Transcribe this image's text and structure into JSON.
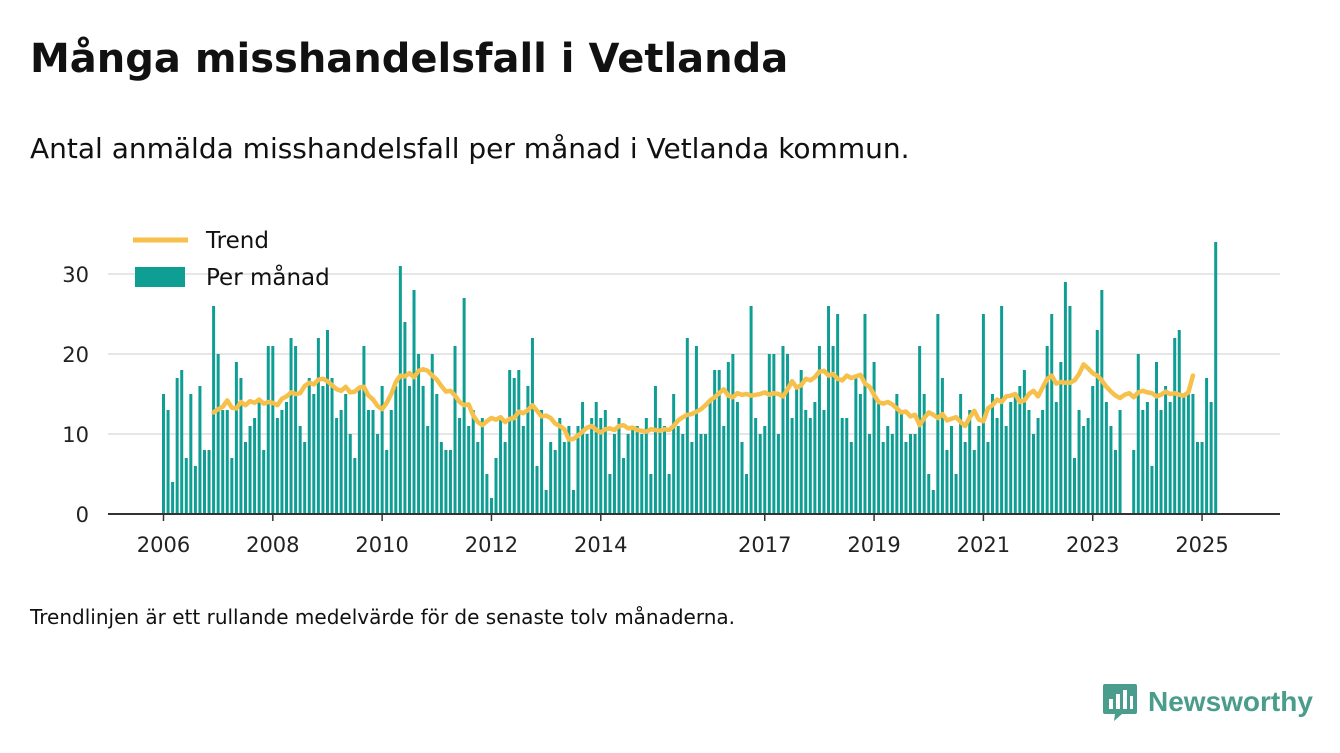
{
  "title": "Många misshandelsfall i Vetlanda",
  "subtitle": "Antal anmälda misshandelsfall per månad i Vetlanda kommun.",
  "footnote": "Trendlinjen är ett rullande medelvärde för de senaste tolv månaderna.",
  "brand": {
    "name": "Newsworthy",
    "icon": "newsworthy-logo-icon"
  },
  "colors": {
    "bars": "#0f9e94",
    "trend": "#f6c04a",
    "grid": "#dddddd",
    "axis": "#333333",
    "brand": "#4a9c8c"
  },
  "legend": {
    "trend_label": "Trend",
    "bars_label": "Per månad"
  },
  "chart_data": {
    "type": "bar",
    "title": "Många misshandelsfall i Vetlanda",
    "start_month": "2006-01",
    "interval": "monthly",
    "ylim": [
      0,
      35
    ],
    "y_ticks": [
      0,
      10,
      20,
      30
    ],
    "x_ticks": [
      "2006",
      "2008",
      "2010",
      "2012",
      "2014",
      "2017",
      "2019",
      "2021",
      "2023",
      "2025"
    ],
    "grid": "horizontal",
    "legend_position": "top-left",
    "series": [
      {
        "name": "Per månad",
        "kind": "bar",
        "values": [
          15,
          13,
          4,
          17,
          18,
          7,
          15,
          6,
          16,
          8,
          8,
          26,
          20,
          13,
          13,
          7,
          19,
          17,
          9,
          11,
          12,
          14,
          8,
          21,
          21,
          12,
          13,
          14,
          22,
          21,
          11,
          9,
          17,
          15,
          22,
          16,
          23,
          17,
          12,
          13,
          15,
          10,
          7,
          16,
          21,
          13,
          13,
          10,
          16,
          8,
          13,
          16,
          31,
          24,
          16,
          28,
          20,
          16,
          11,
          20,
          15,
          9,
          8,
          8,
          21,
          12,
          27,
          11,
          13,
          9,
          12,
          5,
          2,
          7,
          12,
          9,
          18,
          17,
          18,
          11,
          16,
          22,
          6,
          13,
          3,
          9,
          8,
          12,
          9,
          11,
          3,
          11,
          14,
          10,
          12,
          14,
          12,
          13,
          5,
          10,
          12,
          7,
          10,
          11,
          11,
          10,
          12,
          5,
          16,
          12,
          11,
          5,
          15,
          11,
          10,
          22,
          9,
          21,
          10,
          10,
          14,
          18,
          18,
          11,
          19,
          20,
          14,
          9,
          5,
          26,
          12,
          10,
          11,
          20,
          20,
          10,
          21,
          20,
          12,
          16,
          18,
          13,
          12,
          14,
          21,
          13,
          26,
          21,
          25,
          12,
          12,
          9,
          17,
          15,
          25,
          10,
          19,
          14,
          9,
          11,
          10,
          15,
          13,
          9,
          10,
          10,
          21,
          15,
          5,
          3,
          25,
          17,
          8,
          11,
          5,
          15,
          9,
          13,
          8,
          11,
          25,
          9,
          15,
          12,
          26,
          11,
          14,
          15,
          16,
          18,
          13,
          10,
          12,
          13,
          21,
          25,
          14,
          19,
          29,
          26,
          7,
          13,
          11,
          12,
          16,
          23,
          28,
          14,
          11,
          8,
          13,
          0,
          0,
          8,
          20,
          13,
          14,
          6,
          19,
          13,
          16,
          14,
          22,
          23,
          15,
          15,
          15,
          9,
          9,
          17,
          14,
          34
        ]
      },
      {
        "name": "Trend",
        "kind": "line",
        "values": [
          null,
          null,
          null,
          null,
          null,
          null,
          null,
          null,
          null,
          null,
          null,
          12.7,
          13.1,
          13.4,
          14.2,
          13.3,
          13.2,
          14.0,
          13.6,
          14.1,
          13.9,
          14.3,
          13.8,
          14.0,
          13.9,
          13.6,
          14.4,
          14.7,
          15.2,
          15.0,
          15.1,
          16.0,
          16.4,
          16.2,
          16.8,
          16.9,
          16.6,
          16.1,
          15.6,
          15.4,
          15.9,
          15.2,
          15.3,
          15.8,
          15.9,
          14.8,
          14.3,
          13.5,
          13.1,
          13.9,
          15.0,
          16.5,
          17.3,
          17.2,
          17.6,
          17.1,
          17.9,
          18.1,
          17.9,
          17.3,
          16.8,
          16.0,
          15.3,
          15.4,
          14.8,
          14.0,
          13.6,
          13.7,
          12.3,
          11.5,
          11.1,
          11.6,
          12.0,
          11.8,
          12.1,
          11.5,
          11.9,
          12.0,
          12.8,
          12.6,
          13.0,
          13.6,
          12.9,
          12.2,
          12.3,
          12.0,
          11.3,
          11.0,
          10.6,
          9.3,
          9.4,
          9.8,
          10.3,
          10.8,
          11.0,
          10.5,
          10.2,
          10.6,
          10.7,
          10.5,
          11.0,
          11.1,
          10.7,
          10.8,
          10.5,
          10.4,
          10.3,
          10.6,
          10.5,
          10.4,
          10.6,
          10.5,
          11.0,
          11.7,
          12.1,
          12.4,
          12.5,
          12.8,
          13.1,
          13.6,
          14.2,
          14.6,
          15.1,
          15.6,
          14.8,
          14.6,
          15.1,
          14.9,
          15.0,
          14.8,
          14.9,
          15.0,
          15.2,
          14.9,
          15.1,
          15.0,
          14.7,
          15.6,
          16.6,
          15.8,
          16.1,
          16.9,
          16.7,
          17.1,
          17.8,
          17.9,
          17.3,
          17.5,
          16.9,
          16.7,
          17.3,
          17.0,
          17.2,
          17.4,
          16.3,
          15.9,
          14.9,
          14.0,
          13.8,
          14.0,
          13.7,
          13.2,
          12.7,
          12.8,
          12.2,
          12.4,
          11.1,
          12.0,
          12.7,
          12.4,
          12.0,
          12.5,
          11.7,
          11.9,
          12.1,
          11.5,
          11.0,
          12.1,
          12.9,
          11.8,
          11.6,
          13.2,
          13.6,
          14.3,
          14.0,
          14.7,
          14.8,
          15.0,
          14.0,
          14.2,
          15.0,
          15.4,
          14.7,
          15.8,
          16.9,
          17.3,
          16.3,
          16.5,
          16.4,
          16.4,
          16.7,
          17.5,
          18.7,
          18.2,
          17.6,
          17.3,
          16.7,
          15.9,
          15.3,
          14.8,
          14.5,
          14.9,
          15.1,
          14.6,
          15.2,
          15.4,
          15.2,
          15.1,
          14.7,
          14.9,
          15.3,
          15.0,
          15.1,
          14.9,
          14.8,
          15.2,
          17.3
        ]
      }
    ]
  }
}
